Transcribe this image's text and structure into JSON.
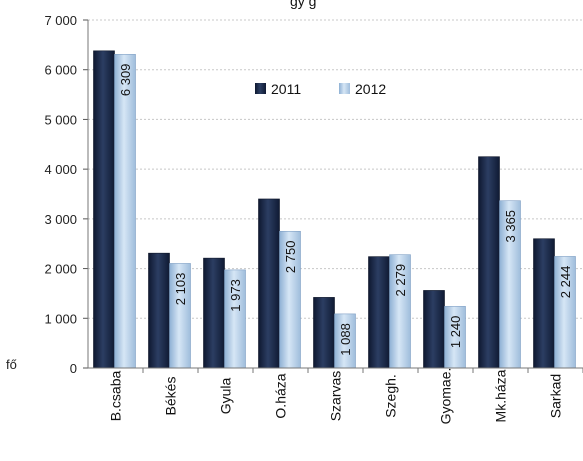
{
  "chart_data": {
    "type": "bar",
    "title": "gy    g",
    "ylabel": "fő",
    "ylim": [
      0,
      7000
    ],
    "yticks": [
      "0",
      "1 000",
      "2 000",
      "3 000",
      "4 000",
      "5 000",
      "6 000",
      "7 000"
    ],
    "ytick_values": [
      0,
      1000,
      2000,
      3000,
      4000,
      5000,
      6000,
      7000
    ],
    "grid": true,
    "legend_position": "top-right",
    "categories": [
      "B.csaba",
      "Békés",
      "Gyula",
      "O.háza",
      "Szarvas",
      "Szegh.",
      "Gyomae.",
      "Mk.háza",
      "Sarkad"
    ],
    "series": [
      {
        "name": "2011",
        "color": "#1b2a49",
        "values": [
          6380,
          2310,
          2210,
          3400,
          1420,
          2240,
          1560,
          4250,
          2600
        ],
        "labels": [
          "",
          "",
          "",
          "",
          "",
          "",
          "",
          "",
          ""
        ]
      },
      {
        "name": "2012",
        "color": "#b4cde6",
        "values": [
          6309,
          2103,
          1973,
          2750,
          1088,
          2279,
          1240,
          3365,
          2244
        ],
        "labels": [
          "6 309",
          "2 103",
          "1 973",
          "2 750",
          "1 088",
          "2 279",
          "1 240",
          "3 365",
          "2 244"
        ]
      }
    ]
  }
}
